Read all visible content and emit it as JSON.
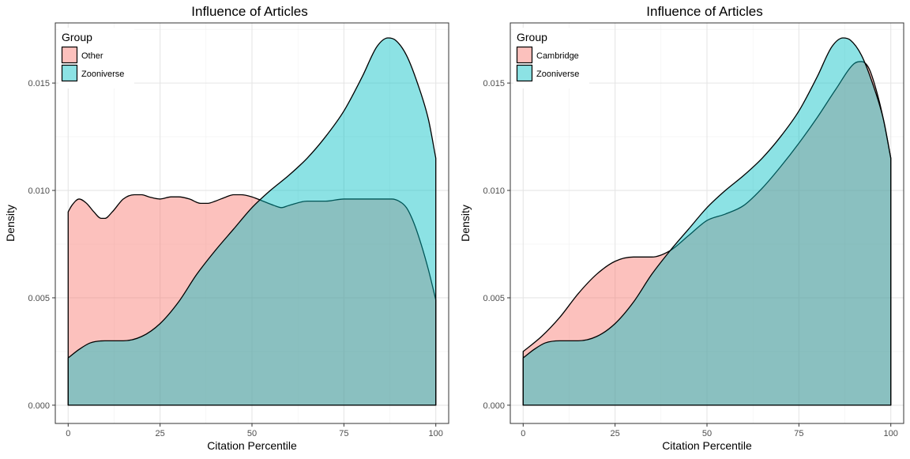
{
  "chart_data": [
    {
      "type": "area",
      "title": "Influence of Articles",
      "xlabel": "Citation Percentile",
      "ylabel": "Density",
      "xlim": [
        -3.5,
        103.5
      ],
      "ylim": [
        -0.00085,
        0.0178
      ],
      "x_ticks": [
        0,
        25,
        50,
        75,
        100
      ],
      "x_tick_labels": [
        "0",
        "25",
        "50",
        "75",
        "100"
      ],
      "y_ticks": [
        0,
        0.005,
        0.01,
        0.015
      ],
      "y_tick_labels": [
        "0.000",
        "0.005",
        "0.010",
        "0.015"
      ],
      "grid": true,
      "legend": {
        "title": "Group",
        "position": "top-left"
      },
      "series": [
        {
          "name": "Other",
          "color": "#F8766D",
          "x": [
            0,
            1,
            3,
            5,
            7,
            9,
            10,
            12,
            15,
            18,
            20,
            22,
            25,
            28,
            30,
            33,
            36,
            38,
            40,
            43,
            45,
            47,
            50,
            53,
            56,
            58,
            60,
            65,
            70,
            75,
            80,
            85,
            88,
            90,
            92,
            94,
            96,
            98,
            100
          ],
          "y": [
            0.009,
            0.0093,
            0.0096,
            0.0094,
            0.009,
            0.0087,
            0.0087,
            0.009,
            0.0096,
            0.0098,
            0.0098,
            0.0097,
            0.0096,
            0.0097,
            0.0097,
            0.0096,
            0.0094,
            0.0094,
            0.0095,
            0.0097,
            0.0098,
            0.0098,
            0.0097,
            0.0095,
            0.0093,
            0.0092,
            0.0093,
            0.0095,
            0.0095,
            0.0096,
            0.0096,
            0.0096,
            0.0096,
            0.0095,
            0.0092,
            0.0085,
            0.0075,
            0.0063,
            0.0049
          ]
        },
        {
          "name": "Zooniverse",
          "color": "#00BFC4",
          "x": [
            0,
            3,
            6,
            10,
            15,
            20,
            25,
            30,
            35,
            40,
            45,
            50,
            55,
            60,
            65,
            70,
            75,
            80,
            84,
            87,
            89,
            92,
            95,
            98,
            100
          ],
          "y": [
            0.0022,
            0.0026,
            0.0029,
            0.003,
            0.003,
            0.0032,
            0.0038,
            0.0048,
            0.0061,
            0.0072,
            0.0082,
            0.0092,
            0.01,
            0.0107,
            0.0115,
            0.0125,
            0.0137,
            0.0153,
            0.0167,
            0.0171,
            0.017,
            0.0163,
            0.015,
            0.0133,
            0.0115
          ]
        }
      ]
    },
    {
      "type": "area",
      "title": "Influence of Articles",
      "xlabel": "Citation Percentile",
      "ylabel": "Density",
      "xlim": [
        -3.5,
        103.5
      ],
      "ylim": [
        -0.00085,
        0.0178
      ],
      "x_ticks": [
        0,
        25,
        50,
        75,
        100
      ],
      "x_tick_labels": [
        "0",
        "25",
        "50",
        "75",
        "100"
      ],
      "y_ticks": [
        0,
        0.005,
        0.01,
        0.015
      ],
      "y_tick_labels": [
        "0.000",
        "0.005",
        "0.010",
        "0.015"
      ],
      "grid": true,
      "legend": {
        "title": "Group",
        "position": "top-left"
      },
      "series": [
        {
          "name": "Cambridge",
          "color": "#F8766D",
          "x": [
            0,
            5,
            10,
            15,
            20,
            25,
            30,
            35,
            40,
            45,
            50,
            55,
            60,
            65,
            70,
            75,
            80,
            85,
            90,
            92,
            94,
            96,
            98,
            100
          ],
          "y": [
            0.0025,
            0.0032,
            0.0041,
            0.0052,
            0.0061,
            0.0067,
            0.0069,
            0.0069,
            0.0072,
            0.0079,
            0.0086,
            0.0089,
            0.0093,
            0.0101,
            0.0111,
            0.0122,
            0.0134,
            0.0147,
            0.0159,
            0.016,
            0.0157,
            0.0147,
            0.0133,
            0.0115
          ]
        },
        {
          "name": "Zooniverse",
          "color": "#00BFC4",
          "x": [
            0,
            3,
            6,
            10,
            15,
            20,
            25,
            30,
            35,
            40,
            45,
            50,
            55,
            60,
            65,
            70,
            75,
            80,
            84,
            87,
            89,
            92,
            95,
            98,
            100
          ],
          "y": [
            0.0022,
            0.0026,
            0.0029,
            0.003,
            0.003,
            0.0032,
            0.0038,
            0.0048,
            0.0061,
            0.0072,
            0.0082,
            0.0092,
            0.01,
            0.0107,
            0.0115,
            0.0125,
            0.0137,
            0.0153,
            0.0167,
            0.0171,
            0.017,
            0.0163,
            0.015,
            0.0133,
            0.0115
          ]
        }
      ]
    }
  ]
}
